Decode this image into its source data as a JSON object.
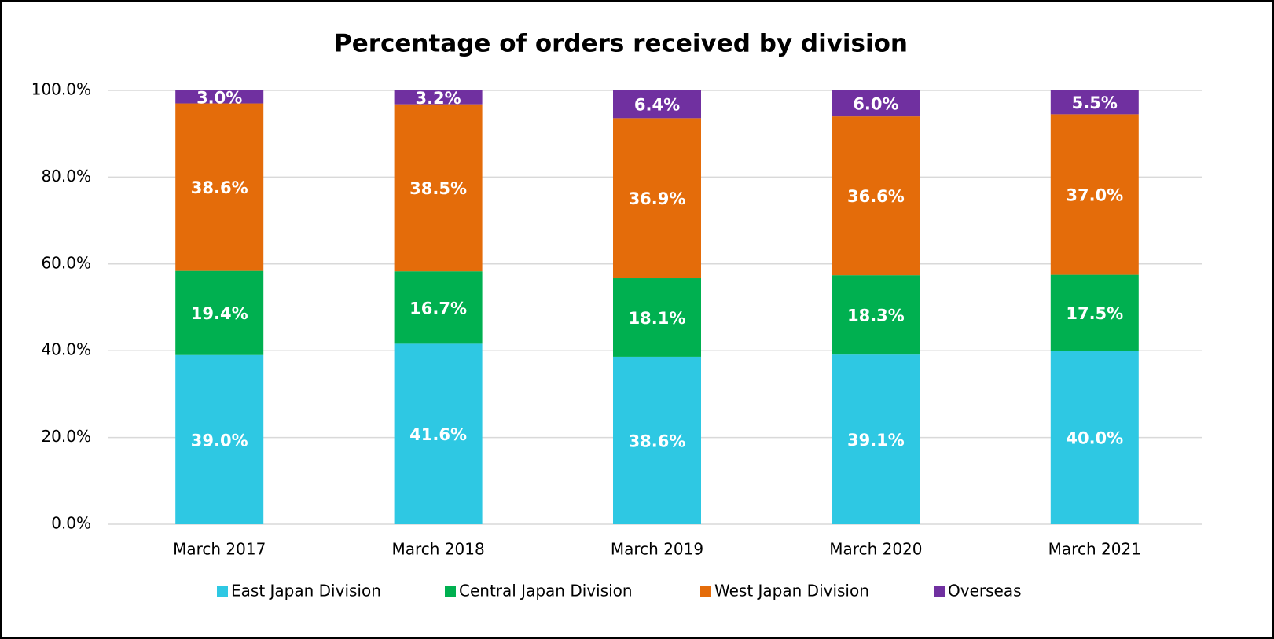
{
  "chart_data": {
    "type": "stacked_bar",
    "title": "Percentage of orders received by division",
    "categories": [
      "March 2017",
      "March 2018",
      "March 2019",
      "March 2020",
      "March 2021"
    ],
    "series": [
      {
        "name": "East Japan Division",
        "color": "#2ec8e3",
        "values": [
          39.0,
          41.6,
          38.6,
          39.1,
          40.0
        ],
        "value_labels": [
          "39.0%",
          "41.6%",
          "38.6%",
          "39.1%",
          "40.0%"
        ]
      },
      {
        "name": "Central Japan Division",
        "color": "#00b050",
        "values": [
          19.4,
          16.7,
          18.1,
          18.3,
          17.5
        ],
        "value_labels": [
          "19.4%",
          "16.7%",
          "18.1%",
          "18.3%",
          "17.5%"
        ]
      },
      {
        "name": "West Japan Division",
        "color": "#e46c0a",
        "values": [
          38.6,
          38.5,
          36.9,
          36.6,
          37.0
        ],
        "value_labels": [
          "38.6%",
          "38.5%",
          "36.9%",
          "36.6%",
          "37.0%"
        ]
      },
      {
        "name": "Overseas",
        "color": "#7030a0",
        "values": [
          3.0,
          3.2,
          6.4,
          6.0,
          5.5
        ],
        "value_labels": [
          "3.0%",
          "3.2%",
          "6.4%",
          "6.0%",
          "5.5%"
        ]
      }
    ],
    "ylim": [
      0,
      100
    ],
    "yticks": [
      {
        "value": 0,
        "label": "0.0%"
      },
      {
        "value": 20,
        "label": "20.0%"
      },
      {
        "value": 40,
        "label": "40.0%"
      },
      {
        "value": 60,
        "label": "60.0%"
      },
      {
        "value": 80,
        "label": "80.0%"
      },
      {
        "value": 100,
        "label": "100.0%"
      }
    ],
    "grid": true,
    "legend": "bottom"
  }
}
